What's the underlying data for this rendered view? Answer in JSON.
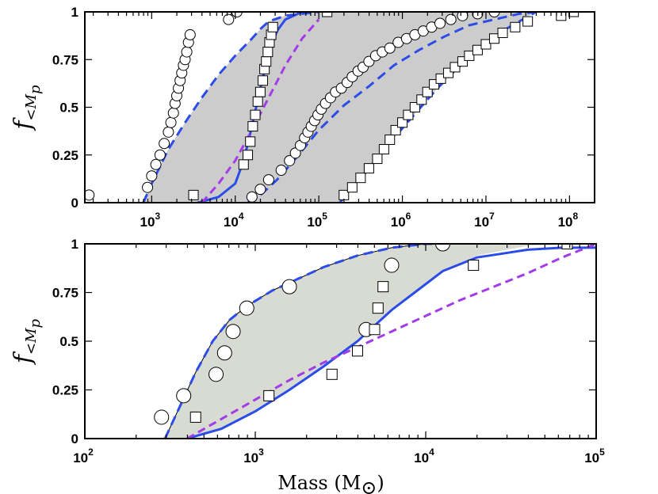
{
  "chart_data": [
    {
      "panel": "top",
      "type": "scatter",
      "xscale": "log",
      "xlim_log10": [
        2.2,
        8.3
      ],
      "ylim": [
        0,
        1
      ],
      "ylabel": "f",
      "ylabel_sub": "<M",
      "ylabel_subsub": "p",
      "xlabel": "",
      "y_ticks": [
        "0",
        "0.25",
        "0.5",
        "0.75",
        "1"
      ],
      "y_tick_values": [
        0,
        0.25,
        0.5,
        0.75,
        1
      ],
      "x_tick_exponents": [
        "3",
        "4",
        "5",
        "6",
        "7",
        "8"
      ],
      "x_tick_base": "10",
      "colors": {
        "band": "#cccccc",
        "blue": "#2b4ce8",
        "purple": "#a23be8",
        "marker": "#000000"
      },
      "band_low": {
        "log10m": [
          2.9,
          3.0,
          3.2,
          3.4,
          3.6,
          3.8,
          4.0,
          4.2,
          4.3,
          4.4,
          4.6,
          4.8,
          5.0
        ],
        "f": [
          0.0,
          0.1,
          0.28,
          0.42,
          0.55,
          0.67,
          0.77,
          0.86,
          0.91,
          0.95,
          0.98,
          0.99,
          1.0
        ]
      },
      "band_high": {
        "log10m": [
          4.15,
          4.3,
          4.5,
          4.7,
          5.0,
          5.3,
          5.6,
          5.9,
          6.2,
          6.5,
          6.8,
          7.1,
          7.4,
          7.6
        ],
        "f": [
          0.0,
          0.04,
          0.12,
          0.22,
          0.38,
          0.51,
          0.61,
          0.72,
          0.8,
          0.87,
          0.93,
          0.96,
          0.99,
          1.0
        ]
      },
      "band_right_edge": {
        "log10m": [
          5.25,
          5.4,
          5.6,
          5.8,
          6.0,
          6.2,
          6.4,
          6.6,
          6.8,
          7.0,
          7.2,
          7.4,
          7.6
        ],
        "f": [
          0.0,
          0.07,
          0.18,
          0.29,
          0.39,
          0.49,
          0.59,
          0.68,
          0.76,
          0.84,
          0.9,
          0.95,
          1.0
        ]
      },
      "blue_solid": {
        "log10m": [
          3.55,
          3.8,
          4.0,
          4.1,
          4.2,
          4.3,
          4.4,
          4.5,
          4.6,
          4.8
        ],
        "f": [
          0.0,
          0.03,
          0.1,
          0.22,
          0.4,
          0.6,
          0.78,
          0.9,
          0.96,
          1.0
        ]
      },
      "purple_dashed": {
        "log10m": [
          3.6,
          3.8,
          4.0,
          4.2,
          4.4,
          4.6,
          4.8,
          5.0
        ],
        "f": [
          0.0,
          0.1,
          0.22,
          0.38,
          0.55,
          0.72,
          0.86,
          0.96
        ]
      },
      "circles_group1": {
        "log10m": [
          2.25,
          2.95,
          3.0,
          3.05,
          3.1,
          3.15,
          3.2,
          3.23,
          3.26,
          3.28,
          3.3,
          3.32,
          3.34,
          3.36,
          3.38,
          3.4,
          3.42,
          3.44,
          3.46,
          3.92,
          4.02
        ],
        "f": [
          0.04,
          0.08,
          0.14,
          0.2,
          0.25,
          0.31,
          0.37,
          0.42,
          0.47,
          0.52,
          0.56,
          0.6,
          0.64,
          0.68,
          0.72,
          0.75,
          0.79,
          0.84,
          0.88,
          0.96,
          1.0
        ]
      },
      "squares_group1": {
        "log10m": [
          3.5,
          4.1,
          4.15,
          4.18,
          4.21,
          4.24,
          4.27,
          4.3,
          4.33,
          4.35,
          4.37,
          4.39,
          4.41,
          4.43,
          4.45,
          5.1
        ],
        "f": [
          0.04,
          0.2,
          0.25,
          0.32,
          0.4,
          0.46,
          0.53,
          0.58,
          0.64,
          0.7,
          0.74,
          0.79,
          0.84,
          0.88,
          0.92,
          1.0
        ]
      },
      "circles_group2": {
        "log10m": [
          4.2,
          4.3,
          4.4,
          4.55,
          4.65,
          4.72,
          4.78,
          4.83,
          4.87,
          4.91,
          4.95,
          4.99,
          5.03,
          5.08,
          5.14,
          5.2,
          5.27,
          5.34,
          5.4,
          5.47,
          5.53,
          5.6,
          5.68,
          5.76,
          5.85,
          5.95,
          6.05,
          6.15,
          6.25,
          6.35,
          6.45,
          6.58,
          6.72,
          6.9,
          7.1
        ],
        "f": [
          0.03,
          0.07,
          0.12,
          0.17,
          0.22,
          0.26,
          0.3,
          0.34,
          0.37,
          0.4,
          0.43,
          0.46,
          0.49,
          0.52,
          0.55,
          0.58,
          0.6,
          0.63,
          0.66,
          0.69,
          0.71,
          0.74,
          0.77,
          0.79,
          0.81,
          0.84,
          0.86,
          0.88,
          0.9,
          0.92,
          0.94,
          0.96,
          0.98,
          0.99,
          1.0
        ]
      },
      "squares_group2": {
        "log10m": [
          5.3,
          5.4,
          5.5,
          5.6,
          5.7,
          5.78,
          5.85,
          5.92,
          6.0,
          6.07,
          6.15,
          6.23,
          6.3,
          6.38,
          6.46,
          6.55,
          6.63,
          6.72,
          6.8,
          6.9,
          7.0,
          7.1,
          7.2,
          7.35,
          7.5,
          7.9,
          8.05
        ],
        "f": [
          0.04,
          0.08,
          0.13,
          0.18,
          0.23,
          0.28,
          0.33,
          0.38,
          0.42,
          0.46,
          0.5,
          0.54,
          0.58,
          0.62,
          0.65,
          0.68,
          0.71,
          0.74,
          0.77,
          0.8,
          0.83,
          0.86,
          0.89,
          0.92,
          0.95,
          0.98,
          1.0
        ]
      }
    },
    {
      "panel": "bottom",
      "type": "scatter",
      "xscale": "log",
      "xlim_log10": [
        2,
        5
      ],
      "ylim": [
        0,
        1
      ],
      "ylabel": "f",
      "ylabel_sub": "<M",
      "ylabel_subsub": "p",
      "xlabel": "Mass (M",
      "xlabel_sub": "⊙",
      "xlabel_close": ")",
      "y_ticks": [
        "0",
        "0.25",
        "0.5",
        "0.75",
        "1"
      ],
      "y_tick_values": [
        0,
        0.25,
        0.5,
        0.75,
        1
      ],
      "x_tick_exponents": [
        "2",
        "3",
        "4",
        "5"
      ],
      "x_tick_base": "10",
      "colors": {
        "band": "#d8dbd2",
        "blue": "#2b4ce8",
        "purple": "#a23be8",
        "marker": "#000000"
      },
      "band_top": {
        "log10m": [
          2.47,
          2.55,
          2.65,
          2.75,
          2.85,
          2.95,
          3.1,
          3.25,
          3.4,
          3.6,
          3.8,
          4.0,
          4.1
        ],
        "f": [
          0.0,
          0.15,
          0.34,
          0.5,
          0.61,
          0.68,
          0.76,
          0.82,
          0.88,
          0.94,
          0.98,
          1.0,
          1.0
        ]
      },
      "band_bottom": {
        "log10m": [
          2.6,
          2.8,
          3.0,
          3.2,
          3.4,
          3.6,
          3.7,
          3.8,
          3.95,
          4.1,
          4.3,
          4.6,
          4.85
        ],
        "f": [
          0.0,
          0.05,
          0.14,
          0.25,
          0.37,
          0.5,
          0.58,
          0.66,
          0.76,
          0.86,
          0.94,
          0.99,
          1.0
        ]
      },
      "blue_solid": {
        "log10m": [
          2.6,
          2.8,
          3.0,
          3.2,
          3.4,
          3.6,
          3.7,
          3.8,
          3.95,
          4.1,
          4.3,
          4.6,
          4.8,
          5.0
        ],
        "f": [
          0.0,
          0.05,
          0.14,
          0.25,
          0.37,
          0.5,
          0.58,
          0.66,
          0.76,
          0.86,
          0.93,
          0.97,
          0.98,
          0.98
        ]
      },
      "purple_dashed": {
        "log10m": [
          2.6,
          2.8,
          3.0,
          3.2,
          3.4,
          3.6,
          3.8,
          4.0,
          4.2,
          4.4,
          4.6,
          4.8,
          5.0
        ],
        "f": [
          0.0,
          0.1,
          0.2,
          0.3,
          0.39,
          0.47,
          0.55,
          0.63,
          0.71,
          0.78,
          0.85,
          0.93,
          1.0
        ]
      },
      "circles": {
        "log10m": [
          2.45,
          2.58,
          2.77,
          2.82,
          2.87,
          2.95,
          3.2,
          3.65,
          3.8,
          4.1
        ],
        "f": [
          0.11,
          0.22,
          0.33,
          0.44,
          0.55,
          0.67,
          0.78,
          0.56,
          0.89,
          1.0
        ]
      },
      "squares": {
        "log10m": [
          2.65,
          3.08,
          3.45,
          3.6,
          3.7,
          3.72,
          3.75,
          4.28,
          4.83
        ],
        "f": [
          0.11,
          0.22,
          0.33,
          0.45,
          0.56,
          0.67,
          0.78,
          0.89,
          1.0
        ]
      }
    }
  ]
}
